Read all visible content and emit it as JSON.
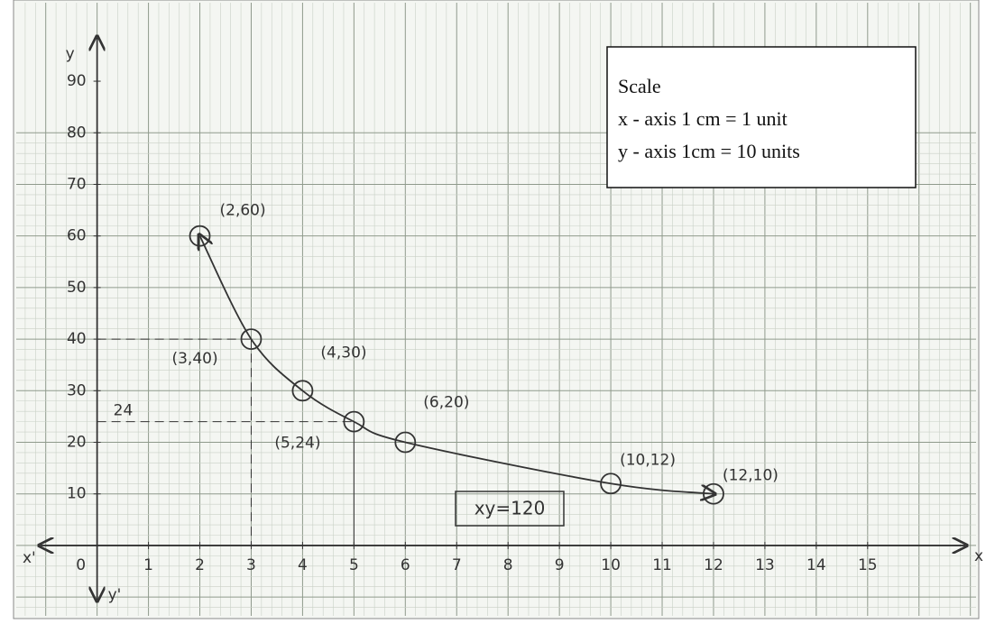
{
  "chart_data": {
    "type": "line",
    "x": [
      2,
      3,
      4,
      5,
      6,
      10,
      12
    ],
    "values": [
      60,
      40,
      30,
      24,
      20,
      12,
      10
    ],
    "value_labels": [
      "(2,60)",
      "(3,40)",
      "(4,30)",
      "(5,24)",
      "(6,20)",
      "(10,12)",
      "(12,10)"
    ],
    "xlim": [
      -1.1,
      16.9
    ],
    "ylim": [
      -10.5,
      98.4
    ],
    "xticks": [
      0,
      1,
      2,
      3,
      4,
      5,
      6,
      7,
      8,
      9,
      10,
      11,
      12,
      13,
      14,
      15
    ],
    "yticks": [
      10,
      20,
      30,
      40,
      50,
      60,
      70,
      80,
      90
    ],
    "x_label": "x",
    "y_label": "y",
    "x_neg_label": "x'",
    "y_neg_label": "y'",
    "equation": "xy=120",
    "scale_box": {
      "title": "Scale",
      "lines": [
        "x - axis 1 cm = 1 unit",
        "y - axis 1cm = 10 units"
      ]
    },
    "color": "#333333",
    "grid": true
  }
}
